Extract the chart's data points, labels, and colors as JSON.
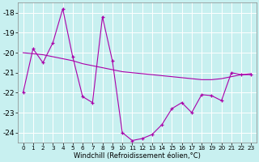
{
  "xlabel": "Windchill (Refroidissement éolien,°C)",
  "background_color": "#c8f0f0",
  "line_color": "#aa00aa",
  "x_hours": [
    0,
    1,
    2,
    3,
    4,
    5,
    6,
    7,
    8,
    9,
    10,
    11,
    12,
    13,
    14,
    15,
    16,
    17,
    18,
    19,
    20,
    21,
    22,
    23
  ],
  "line1": [
    -22.0,
    -19.8,
    -20.5,
    -19.5,
    -17.8,
    -20.2,
    -22.2,
    -22.5,
    -18.2,
    -20.4,
    -24.0,
    -24.4,
    -24.3,
    -24.1,
    -23.6,
    -22.8,
    -22.5,
    -23.0,
    -22.1,
    -22.15,
    -22.4,
    -21.0,
    -21.1,
    -21.1
  ],
  "line2": [
    -20.0,
    -20.05,
    -20.1,
    -20.2,
    -20.3,
    -20.4,
    -20.55,
    -20.65,
    -20.75,
    -20.85,
    -20.95,
    -21.0,
    -21.05,
    -21.1,
    -21.15,
    -21.2,
    -21.25,
    -21.3,
    -21.35,
    -21.35,
    -21.3,
    -21.2,
    -21.1,
    -21.05
  ],
  "ylim": [
    -24.5,
    -17.5
  ],
  "yticks": [
    -24,
    -23,
    -22,
    -21,
    -20,
    -19,
    -18
  ],
  "xticks": [
    0,
    1,
    2,
    3,
    4,
    5,
    6,
    7,
    8,
    9,
    10,
    11,
    12,
    13,
    14,
    15,
    16,
    17,
    18,
    19,
    20,
    21,
    22,
    23
  ]
}
